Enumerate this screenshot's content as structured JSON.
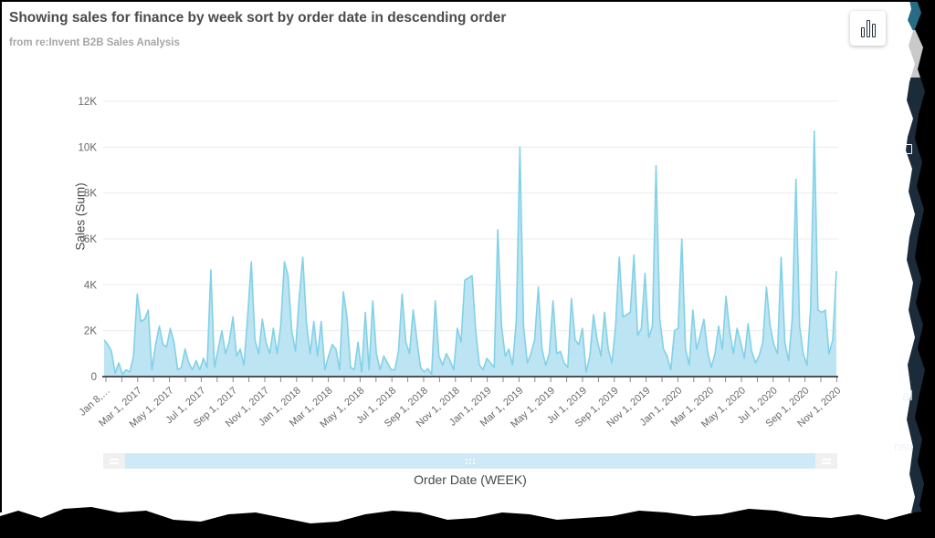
{
  "header": {
    "title": "Showing sales for finance by week sort by order date in descending order",
    "subtitle": "from re:Invent B2B Sales Analysis"
  },
  "icons": {
    "chart_type_button": "bar-chart-icon",
    "scrollbar_handles": "drag-handle-icon",
    "scrollbar_thumb": "grip-dots-icon"
  },
  "torn_fragments": {
    "text_1": "al",
    "text_2": "nsu"
  },
  "colors": {
    "area_fill": "#bce4f2",
    "area_stroke": "#82d1e7",
    "gridline": "#ececec",
    "axis_line": "#4d5156",
    "tick_text": "#666666",
    "scrollbar_blue": "#cfe9f7",
    "panel_teal": "#266c84",
    "panel_gray": "#c9c9c9",
    "panel_navy": "#1b2b3a"
  },
  "chart_data": {
    "type": "area",
    "title": "Showing sales for finance by week sort by order date in descending order",
    "xlabel": "Order Date (WEEK)",
    "ylabel": "Sales (Sum)",
    "unit": "K (thousands)",
    "ylim": [
      0,
      12000
    ],
    "grid": true,
    "legend": "none",
    "y_ticks": [
      "0",
      "2K",
      "4K",
      "6K",
      "8K",
      "10K",
      "12K"
    ],
    "x_tick_labels": [
      "Jan 8,…",
      "Mar 1, 2017",
      "May 1, 2017",
      "Jul 1, 2017",
      "Sep 1, 2017",
      "Nov 1, 2017",
      "Jan 1, 2018",
      "Mar 1, 2018",
      "May 1, 2018",
      "Jul 1, 2018",
      "Sep 1, 2018",
      "Nov 1, 2018",
      "Jan 1, 2019",
      "Mar 1, 2019",
      "May 1, 2019",
      "Jul 1, 2019",
      "Sep 1, 2019",
      "Nov 1, 2019",
      "Jan 1, 2020",
      "Mar 1, 2020",
      "May 1, 2020",
      "Jul 1, 2020",
      "Sep 1, 2020",
      "Nov 1, 2020"
    ],
    "x_range_note": "weekly points, Jan 8 2017 - Nov 1 2020",
    "values_k": [
      1.6,
      1.4,
      1.1,
      0.15,
      0.6,
      0.1,
      0.3,
      0.2,
      0.9,
      3.6,
      2.4,
      2.5,
      2.9,
      0.3,
      1.4,
      2.2,
      1.4,
      1.3,
      2.1,
      1.5,
      0.3,
      0.4,
      1.2,
      0.6,
      0.3,
      0.7,
      0.3,
      0.8,
      0.4,
      4.65,
      0.4,
      1.2,
      2.0,
      1.0,
      1.5,
      2.6,
      0.9,
      1.2,
      0.5,
      2.6,
      5.0,
      1.6,
      1.0,
      2.5,
      1.5,
      1.0,
      2.1,
      1.0,
      2.2,
      5.0,
      4.4,
      2.0,
      1.1,
      3.4,
      5.2,
      2.3,
      1.0,
      2.4,
      0.9,
      2.4,
      0.3,
      0.9,
      1.4,
      1.2,
      0.3,
      3.7,
      2.6,
      0.4,
      0.3,
      1.5,
      0.2,
      2.8,
      0.3,
      3.3,
      1.0,
      0.3,
      0.9,
      0.6,
      0.3,
      0.3,
      1.1,
      3.6,
      1.5,
      1.0,
      2.9,
      1.6,
      0.4,
      0.2,
      0.35,
      0.1,
      3.3,
      0.9,
      0.5,
      1.0,
      0.7,
      0.3,
      2.1,
      1.5,
      4.2,
      4.3,
      4.4,
      2.0,
      0.5,
      0.3,
      0.8,
      0.6,
      0.4,
      6.4,
      2.2,
      0.9,
      1.2,
      0.5,
      2.4,
      10.0,
      2.2,
      0.6,
      1.0,
      1.6,
      3.9,
      1.2,
      0.5,
      1.0,
      3.3,
      1.0,
      1.1,
      0.6,
      0.4,
      3.4,
      1.6,
      1.4,
      2.1,
      0.2,
      0.9,
      2.7,
      1.6,
      0.9,
      2.8,
      1.2,
      0.6,
      2.2,
      5.2,
      2.6,
      2.7,
      2.8,
      5.3,
      1.8,
      2.1,
      4.5,
      1.7,
      2.2,
      9.2,
      2.5,
      1.2,
      0.9,
      0.3,
      2.0,
      2.1,
      6.0,
      1.2,
      0.5,
      2.9,
      1.2,
      1.8,
      2.5,
      1.1,
      0.4,
      1.0,
      2.2,
      1.2,
      3.5,
      2.0,
      1.0,
      2.1,
      1.5,
      0.8,
      2.3,
      1.1,
      0.6,
      0.9,
      1.5,
      3.9,
      2.2,
      1.4,
      1.0,
      5.2,
      1.5,
      0.7,
      2.5,
      8.6,
      2.2,
      1.0,
      0.5,
      3.0,
      10.7,
      2.9,
      2.8,
      2.9,
      1.0,
      1.6,
      4.6
    ]
  }
}
